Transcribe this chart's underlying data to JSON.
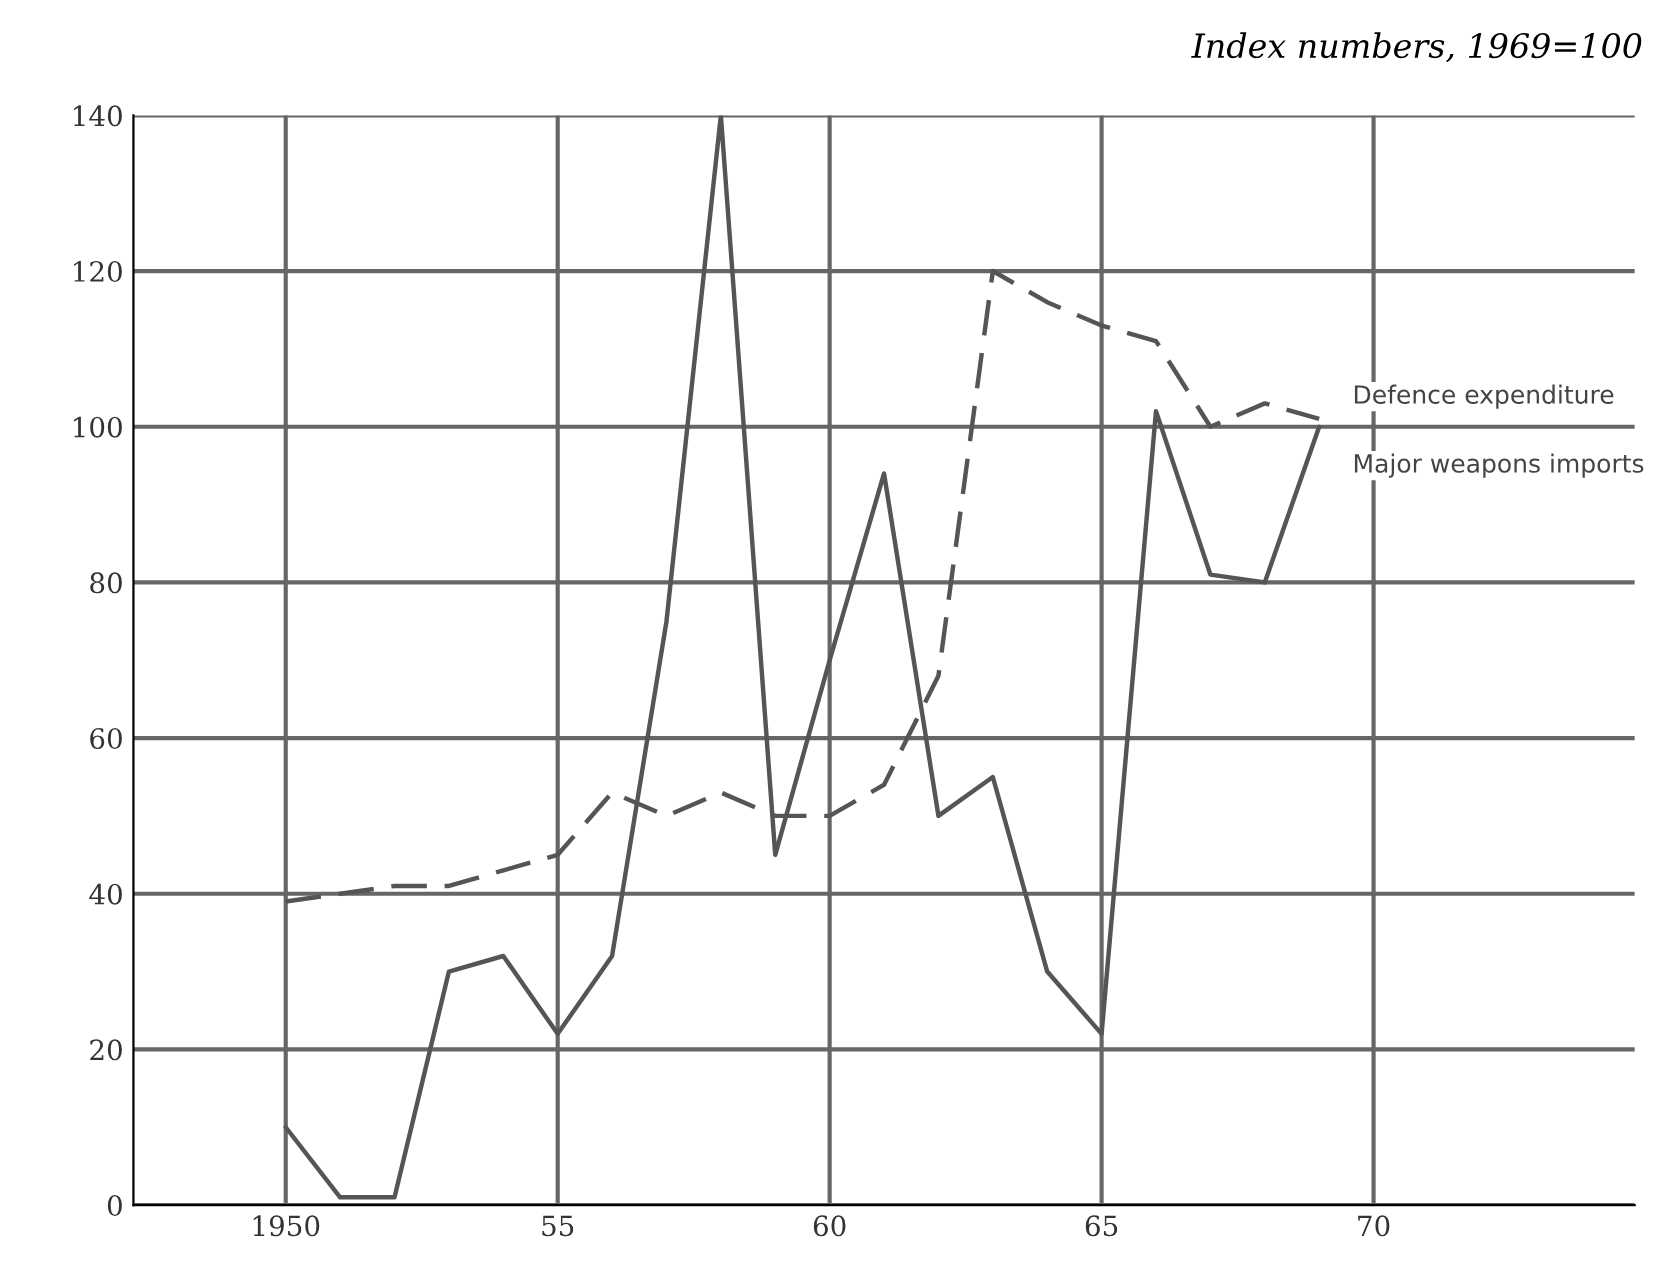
{
  "chart_data": {
    "type": "line",
    "subtitle": "Index numbers, 1969=100",
    "x": [
      1950,
      1951,
      1952,
      1953,
      1954,
      1955,
      1956,
      1957,
      1958,
      1959,
      1960,
      1961,
      1962,
      1963,
      1964,
      1965,
      1966,
      1967,
      1968,
      1969
    ],
    "series": [
      {
        "name": "Defence expenditure",
        "color": "#555555",
        "line_style": "dashed",
        "values": [
          39,
          40,
          41,
          41,
          43,
          45,
          53,
          50,
          53,
          50,
          50,
          54,
          68,
          120,
          116,
          113,
          111,
          100,
          103,
          101
        ]
      },
      {
        "name": "Major weapons imports",
        "color": "#555555",
        "line_style": "solid",
        "values": [
          10,
          1,
          1,
          30,
          32,
          22,
          32,
          75,
          140,
          45,
          70,
          94,
          50,
          55,
          30,
          22,
          102,
          81,
          80,
          100
        ]
      }
    ],
    "xlim": [
      1947.2,
      1974.8
    ],
    "ylim": [
      0,
      140
    ],
    "xticks": [
      1950,
      {
        "value": 1955,
        "label": "55"
      },
      {
        "value": 1960,
        "label": "60"
      },
      {
        "value": 1965,
        "label": "65"
      },
      {
        "value": 1970,
        "label": "70"
      }
    ],
    "yticks": [
      0,
      20,
      40,
      60,
      80,
      100,
      120,
      140
    ],
    "grid": true,
    "legend": false,
    "marker": "none"
  }
}
